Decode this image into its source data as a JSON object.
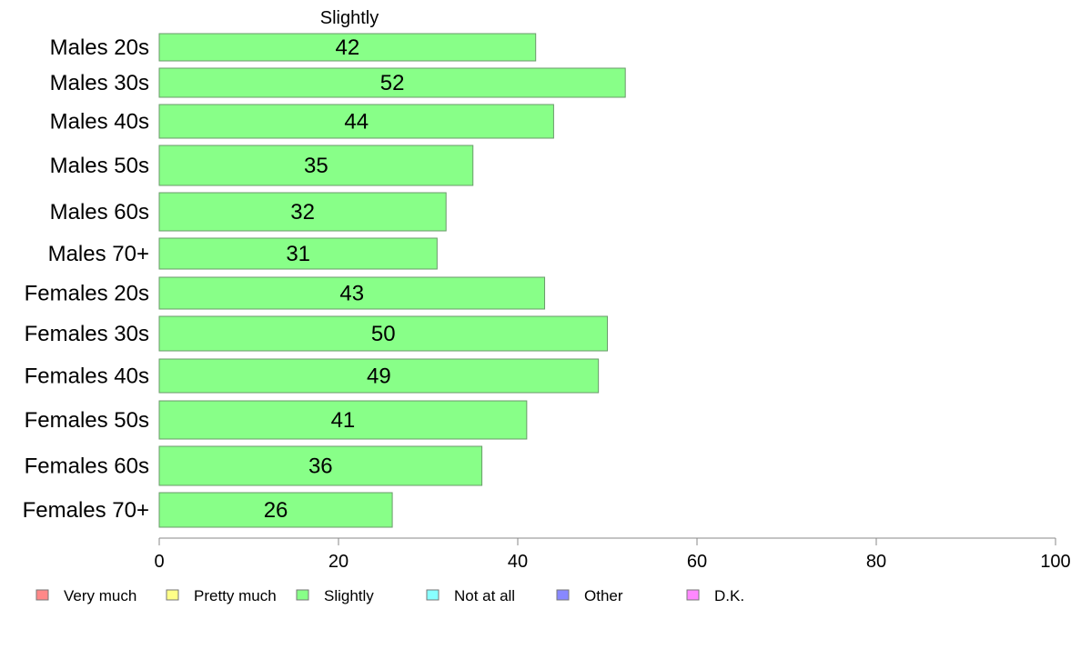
{
  "chart_data": {
    "type": "bar",
    "orientation": "horizontal",
    "title": "Slightly",
    "categories": [
      "Males 20s",
      "Males 30s",
      "Males 40s",
      "Males 50s",
      "Males 60s",
      "Males 70+",
      "Females 20s",
      "Females 30s",
      "Females 40s",
      "Females 50s",
      "Females 60s",
      "Females 70+"
    ],
    "series": [
      {
        "name": "Slightly",
        "values": [
          42,
          52,
          44,
          35,
          32,
          31,
          43,
          50,
          49,
          41,
          36,
          26
        ],
        "color": "#88ff88"
      }
    ],
    "xlim": [
      0,
      100
    ],
    "xticks": [
      0,
      20,
      40,
      60,
      80,
      100
    ],
    "grid": false,
    "legend_position": "bottom",
    "legend": [
      {
        "label": "Very much",
        "color": "#ff8888"
      },
      {
        "label": "Pretty much",
        "color": "#ffff88"
      },
      {
        "label": "Slightly",
        "color": "#88ff88"
      },
      {
        "label": "Not at all",
        "color": "#88ffff"
      },
      {
        "label": "Other",
        "color": "#8888ff"
      },
      {
        "label": "D.K.",
        "color": "#ff88ff"
      }
    ]
  }
}
